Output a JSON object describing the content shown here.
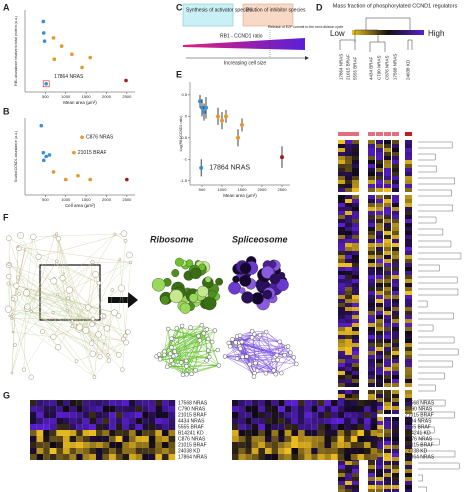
{
  "panels": {
    "a": "A",
    "b": "B",
    "c": "C",
    "d": "D",
    "e": "E",
    "f": "F",
    "g": "G"
  },
  "chart_data": [
    {
      "type": "scatter",
      "x_label": "Mean area (µm²)",
      "y_label": "RB1 abundance relative to total protein (a.u.)",
      "xlim": [
        0,
        2700
      ],
      "ylim": [
        0,
        1
      ],
      "xticks": [
        500,
        1000,
        1500,
        2000,
        2500
      ],
      "annotations": [
        "17864 NRAS"
      ],
      "series": [
        {
          "color": "#3b8fd2",
          "x": [
            450,
            460,
            480,
            520
          ],
          "values": [
            0.86,
            0.72,
            0.62,
            0.1
          ]
        },
        {
          "color": "#e8952a",
          "x": [
            700,
            900,
            1150,
            1400,
            1600,
            720
          ],
          "values": [
            0.66,
            0.56,
            0.46,
            0.3,
            0.42,
            0.4
          ]
        },
        {
          "color": "#a01b1b",
          "x": [
            2480
          ],
          "values": [
            0.14
          ]
        }
      ]
    },
    {
      "type": "scatter",
      "x_label": "Cell area (µm²)",
      "y_label": "Scaled CCND1 abundance (a.u.)",
      "xlim": [
        0,
        2700
      ],
      "ylim": [
        0,
        1
      ],
      "xticks": [
        500,
        1000,
        1500,
        2000,
        2500
      ],
      "annotations": [
        "C876 NRAS",
        "21015 BRAF"
      ],
      "series": [
        {
          "color": "#3b8fd2",
          "x": [
            400,
            450,
            460,
            520,
            600
          ],
          "values": [
            0.9,
            0.55,
            0.45,
            0.5,
            0.52
          ]
        },
        {
          "color": "#e8952a",
          "x": [
            1400,
            1200,
            700,
            1000,
            1300,
            1600
          ],
          "values": [
            0.75,
            0.55,
            0.3,
            0.2,
            0.25,
            0.2
          ]
        },
        {
          "color": "#a01b1b",
          "x": [
            2500
          ],
          "values": [
            0.2
          ]
        }
      ]
    },
    {
      "type": "errorscatter",
      "x_label": "Mean area (µm²)",
      "y_label": "Log(RB1/CCND1 ratio)",
      "xlim": [
        200,
        2700
      ],
      "ylim": [
        -1.6,
        0.8
      ],
      "xticks": [
        500,
        1000,
        1500,
        2000,
        2500
      ],
      "yticks": [
        0.5,
        0,
        -0.5,
        -1,
        -1.5
      ],
      "annotations": [
        "17864 NRAS"
      ],
      "series": [
        {
          "color": "#3b8fd2",
          "x": [
            450,
            500,
            550,
            600,
            480
          ],
          "values": [
            0.35,
            0.2,
            0.1,
            0.2,
            -1.2
          ],
          "errors": [
            0.15,
            0.2,
            0.2,
            0.25,
            0.2
          ]
        },
        {
          "color": "#e8952a",
          "x": [
            900,
            1000,
            1100,
            1400,
            1500
          ],
          "values": [
            0.0,
            -0.1,
            0.0,
            -0.5,
            -0.2
          ],
          "errors": [
            0.2,
            0.2,
            0.15,
            0.2,
            0.15
          ]
        },
        {
          "color": "#a01b1b",
          "x": [
            2500
          ],
          "values": [
            -0.95
          ],
          "errors": [
            0.25
          ]
        }
      ]
    }
  ],
  "diagram_c": {
    "box1": "Synthesis of activator species",
    "box2": "Dilution of inhibitor species",
    "ratio": "RB1 - CCND1 ratio",
    "release": "Release of E2F commit to the next division cycle",
    "size": "Increasing cell size"
  },
  "heatmap_d": {
    "title": "Mass fraction of phosphorylated CCND1 regulators",
    "low": "Low",
    "high": "High",
    "columns": [
      "17864 NRAS",
      "21015 BRAF",
      "5555 BRAF",
      "4434 BRAF",
      "C790 NRAS",
      "C876 NRAS",
      "17568 NRAS",
      "24038 KD"
    ],
    "column_colors": [
      "#3b8fd2",
      "#e8952a",
      "#3b8fd2",
      "#3b8fd2",
      "#3b8fd2",
      "#e8952a",
      "#e8952a",
      "#c0201b"
    ]
  },
  "network_f": {
    "ribosome": "Ribosome",
    "spliceosome": "Spliceosome"
  },
  "heatmap_g": {
    "rows": [
      "17568 NRAS",
      "C790 NRAS",
      "21015 BRAF",
      "4434 NRAS",
      "5555 BRAF",
      "B14241 KD",
      "C876 NRAS",
      "21015 BRAF",
      "24038 KD",
      "17864 NRAS"
    ],
    "row_colors": [
      "#3b8fd2",
      "#3b8fd2",
      "#e8952a",
      "#3b8fd2",
      "#3b8fd2",
      "#e8952a",
      "#e8952a",
      "#e8952a",
      "#c0201b",
      "#3b8fd2"
    ]
  }
}
